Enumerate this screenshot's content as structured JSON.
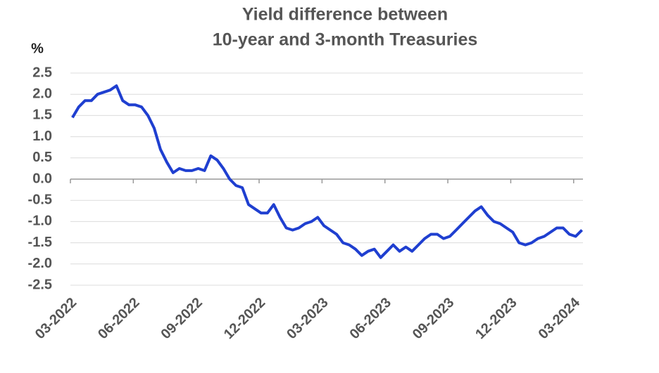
{
  "chart_data": {
    "type": "line",
    "title": [
      "Yield difference between",
      "10-year and 3-month Treasuries"
    ],
    "y_label": "%",
    "x": [
      2022.175,
      2022.2,
      2022.225,
      2022.25,
      2022.275,
      2022.3,
      2022.325,
      2022.35,
      2022.375,
      2022.4,
      2022.425,
      2022.45,
      2022.475,
      2022.5,
      2022.525,
      2022.55,
      2022.575,
      2022.6,
      2022.625,
      2022.65,
      2022.675,
      2022.7,
      2022.725,
      2022.75,
      2022.775,
      2022.8,
      2022.825,
      2022.85,
      2022.875,
      2022.9,
      2022.925,
      2022.95,
      2022.975,
      2023.0,
      2023.025,
      2023.05,
      2023.075,
      2023.1,
      2023.125,
      2023.15,
      2023.175,
      2023.2,
      2023.225,
      2023.25,
      2023.275,
      2023.3,
      2023.325,
      2023.35,
      2023.375,
      2023.4,
      2023.425,
      2023.45,
      2023.475,
      2023.5,
      2023.525,
      2023.55,
      2023.575,
      2023.6,
      2023.625,
      2023.65,
      2023.675,
      2023.7,
      2023.725,
      2023.75,
      2023.775,
      2023.8,
      2023.825,
      2023.85,
      2023.875,
      2023.9,
      2023.925,
      2023.95,
      2023.975,
      2024.0,
      2024.025,
      2024.05,
      2024.075,
      2024.1,
      2024.125,
      2024.15,
      2024.175,
      2024.2
    ],
    "series": [
      {
        "color": "#1f3fd0",
        "values": [
          1.45,
          1.7,
          1.85,
          1.85,
          2.0,
          2.05,
          2.1,
          2.2,
          1.85,
          1.75,
          1.75,
          1.7,
          1.5,
          1.2,
          0.7,
          0.4,
          0.15,
          0.25,
          0.2,
          0.2,
          0.25,
          0.2,
          0.55,
          0.45,
          0.25,
          0.0,
          -0.15,
          -0.2,
          -0.6,
          -0.7,
          -0.8,
          -0.8,
          -0.6,
          -0.9,
          -1.15,
          -1.2,
          -1.15,
          -1.05,
          -1.0,
          -0.9,
          -1.1,
          -1.2,
          -1.3,
          -1.5,
          -1.55,
          -1.65,
          -1.8,
          -1.7,
          -1.65,
          -1.85,
          -1.7,
          -1.55,
          -1.7,
          -1.6,
          -1.7,
          -1.55,
          -1.4,
          -1.3,
          -1.3,
          -1.4,
          -1.35,
          -1.2,
          -1.05,
          -0.9,
          -0.75,
          -0.65,
          -0.85,
          -1.0,
          -1.05,
          -1.15,
          -1.25,
          -1.5,
          -1.55,
          -1.5,
          -1.4,
          -1.35,
          -1.25,
          -1.15,
          -1.15,
          -1.3,
          -1.35,
          -1.2
        ]
      }
    ],
    "xlim": [
      2022.167,
      2024.204
    ],
    "xticks": [
      {
        "value": 2022.167,
        "label": "03-2022"
      },
      {
        "value": 2022.417,
        "label": "06-2022"
      },
      {
        "value": 2022.667,
        "label": "09-2022"
      },
      {
        "value": 2022.917,
        "label": "12-2022"
      },
      {
        "value": 2023.167,
        "label": "03-2023"
      },
      {
        "value": 2023.417,
        "label": "06-2023"
      },
      {
        "value": 2023.667,
        "label": "09-2023"
      },
      {
        "value": 2023.917,
        "label": "12-2023"
      },
      {
        "value": 2024.167,
        "label": "03-2024"
      }
    ],
    "ylim": [
      -2.5,
      2.5
    ],
    "yticks": [
      2.5,
      {
        "value": 2,
        "label": "2.0"
      },
      1.5,
      {
        "value": 1,
        "label": "1.0"
      },
      0.5,
      {
        "value": 0,
        "label": "0.0"
      },
      -0.5,
      {
        "value": -1,
        "label": "-1.0"
      },
      -1.5,
      {
        "value": -2,
        "label": "-2.0"
      },
      -2.5
    ],
    "grid": true
  }
}
